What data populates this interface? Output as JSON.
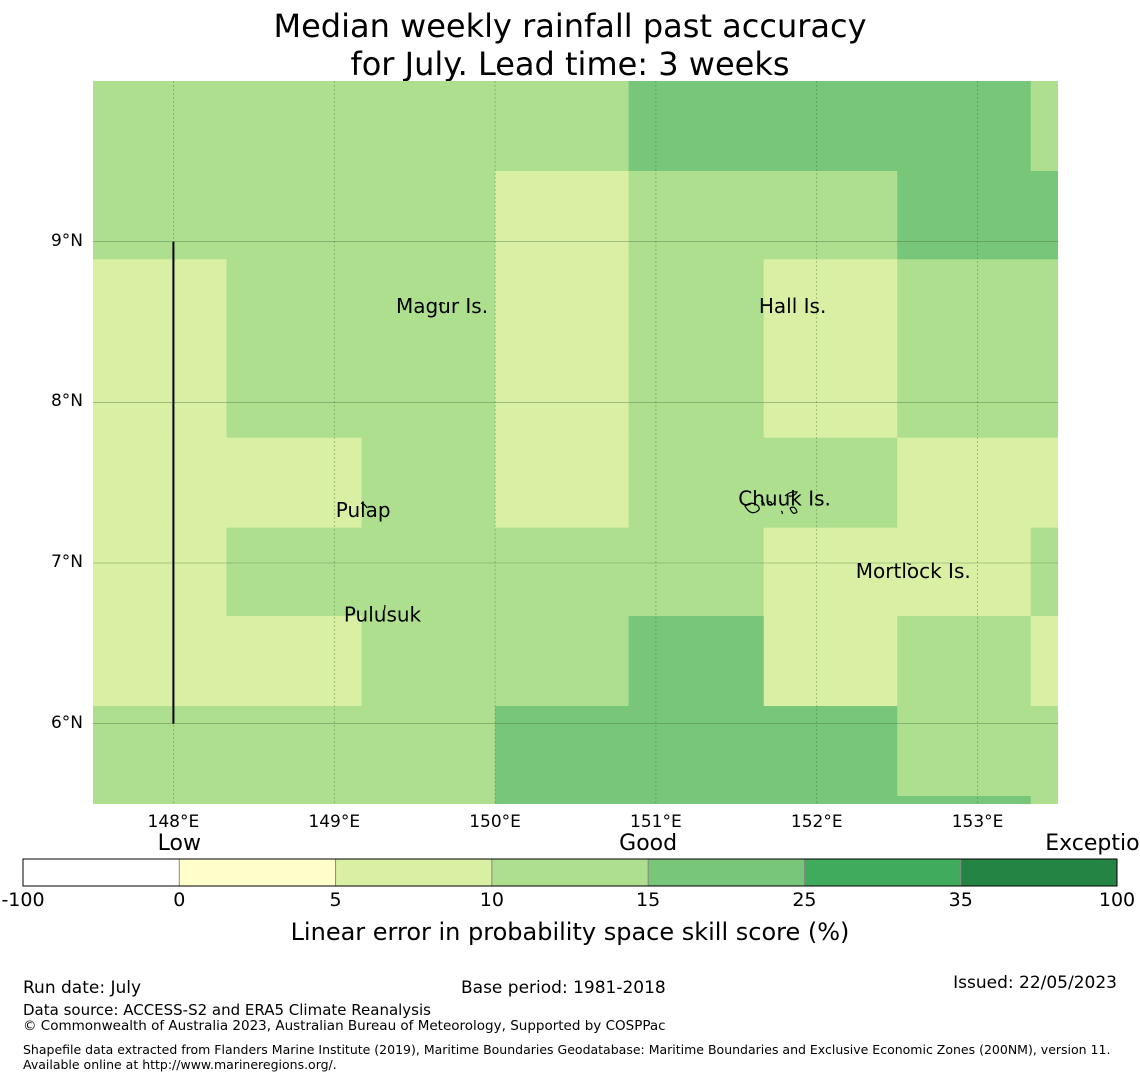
{
  "title": {
    "line1": "Median weekly rainfall past accuracy",
    "line2": "for July. Lead time: 3 weeks"
  },
  "map": {
    "lon_range": [
      147.5,
      153.5
    ],
    "lat_range": [
      5.5,
      10.0
    ],
    "x_ticks": [
      {
        "lon": 148,
        "label": "148°E"
      },
      {
        "lon": 149,
        "label": "149°E"
      },
      {
        "lon": 150,
        "label": "150°E"
      },
      {
        "lon": 151,
        "label": "151°E"
      },
      {
        "lon": 152,
        "label": "152°E"
      },
      {
        "lon": 153,
        "label": "153°E"
      }
    ],
    "y_ticks": [
      {
        "lat": 9,
        "label": "9°N"
      },
      {
        "lat": 8,
        "label": "8°N"
      },
      {
        "lat": 7,
        "label": "7°N"
      },
      {
        "lat": 6,
        "label": "6°N"
      }
    ],
    "category_colors": {
      "c5_10": "#d9efa3",
      "c10_15": "#addf8e",
      "c15_25": "#78c679"
    },
    "cell_lon_edges": [
      147.5,
      148.33,
      149.17,
      150.0,
      150.83,
      151.67,
      152.5,
      153.33,
      153.5
    ],
    "cell_lat_edges": [
      10.0,
      9.44,
      8.89,
      8.33,
      7.78,
      7.22,
      6.67,
      6.11,
      5.55,
      5.5
    ],
    "grid_categories": [
      [
        "c10_15",
        "c10_15",
        "c10_15",
        "c10_15",
        "c15_25",
        "c15_25",
        "c15_25",
        "c10_15"
      ],
      [
        "c10_15",
        "c10_15",
        "c10_15",
        "c5_10",
        "c10_15",
        "c10_15",
        "c15_25",
        "c15_25"
      ],
      [
        "c5_10",
        "c10_15",
        "c10_15",
        "c5_10",
        "c10_15",
        "c5_10",
        "c10_15",
        "c10_15"
      ],
      [
        "c5_10",
        "c10_15",
        "c10_15",
        "c5_10",
        "c10_15",
        "c5_10",
        "c10_15",
        "c10_15"
      ],
      [
        "c5_10",
        "c5_10",
        "c10_15",
        "c5_10",
        "c10_15",
        "c10_15",
        "c5_10",
        "c5_10"
      ],
      [
        "c5_10",
        "c10_15",
        "c10_15",
        "c10_15",
        "c10_15",
        "c5_10",
        "c5_10",
        "c10_15"
      ],
      [
        "c5_10",
        "c5_10",
        "c10_15",
        "c10_15",
        "c15_25",
        "c5_10",
        "c10_15",
        "c5_10"
      ],
      [
        "c10_15",
        "c10_15",
        "c10_15",
        "c15_25",
        "c15_25",
        "c15_25",
        "c10_15",
        "c10_15"
      ],
      [
        "c10_15",
        "c10_15",
        "c10_15",
        "c15_25",
        "c15_25",
        "c15_25",
        "c15_25",
        "c10_15"
      ]
    ],
    "eez_line": {
      "lon": 148.0,
      "lat_from": 6.0,
      "lat_to": 9.0
    },
    "places": [
      {
        "name": "Magur Is.",
        "lon": 149.67,
        "lat": 8.6
      },
      {
        "name": "Hall Is.",
        "lon": 151.85,
        "lat": 8.6
      },
      {
        "name": "Pulap",
        "lon": 149.18,
        "lat": 7.33
      },
      {
        "name": "Chuuk Is.",
        "lon": 151.8,
        "lat": 7.4
      },
      {
        "name": "Mortlock Is.",
        "lon": 152.6,
        "lat": 6.95
      },
      {
        "name": "Pulusuk",
        "lon": 149.3,
        "lat": 6.68
      }
    ]
  },
  "colorbar": {
    "categories": [
      {
        "label": "Low",
        "center_tick": 0.5
      },
      {
        "label": "Good",
        "center_tick": 3.5
      },
      {
        "label": "Exceptional",
        "center_tick": 6.45
      }
    ],
    "ticks": [
      "-100",
      "0",
      "5",
      "10",
      "15",
      "25",
      "35",
      "100"
    ],
    "colors": [
      "#ffffff",
      "#ffffcc",
      "#d9efa3",
      "#addf8e",
      "#78c679",
      "#41ab5d",
      "#238443"
    ],
    "label": "Linear error in probability space skill score (%)"
  },
  "footer": {
    "run_date": "Run date: July",
    "base_period": "Base period: 1981-2018",
    "issued": "Issued: 22/05/2023",
    "data_source": "Data source: ACCESS-S2 and ERA5 Climate Reanalysis",
    "copyright": "© Commonwealth of Australia 2023, Australian Bureau of Meteorology, Supported by COSPPac",
    "shapefile": "Shapefile data extracted from Flanders Marine Institute (2019), Maritime Boundaries Geodatabase: Maritime Boundaries and Exclusive Economic Zones (200NM), version 11. Available online at http://www.marineregions.org/."
  }
}
